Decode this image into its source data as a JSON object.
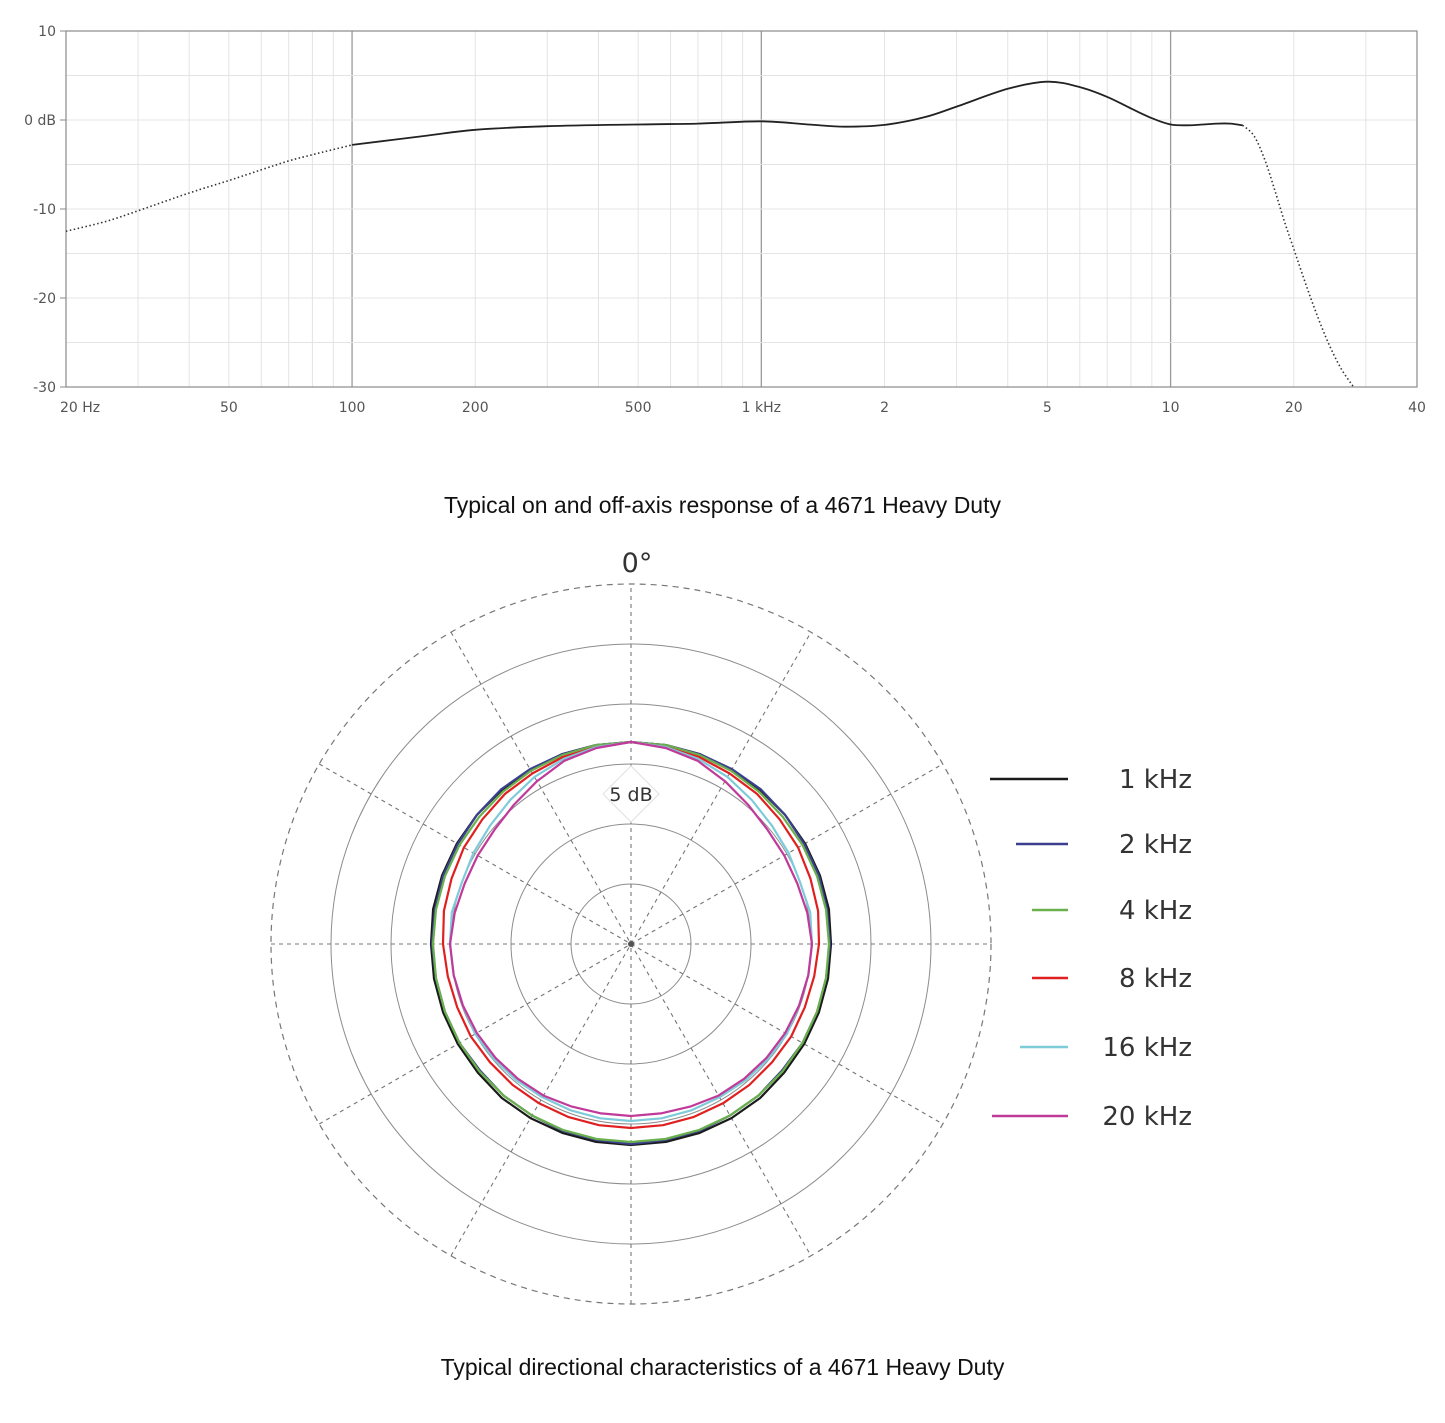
{
  "chart_data": [
    {
      "type": "line",
      "xscale": "log",
      "xlim": [
        20,
        40000
      ],
      "ylim": [
        -30,
        10
      ],
      "grid": true,
      "yticks": [
        {
          "value": 10,
          "label": "10"
        },
        {
          "value": 0,
          "label": "0 dB"
        },
        {
          "value": -10,
          "label": "-10"
        },
        {
          "value": -20,
          "label": "-20"
        },
        {
          "value": -30,
          "label": "-30"
        }
      ],
      "xticks": [
        {
          "value": 20,
          "label": "20 Hz"
        },
        {
          "value": 50,
          "label": "50"
        },
        {
          "value": 100,
          "label": "100"
        },
        {
          "value": 200,
          "label": "200"
        },
        {
          "value": 500,
          "label": "500"
        },
        {
          "value": 1000,
          "label": "1 kHz"
        },
        {
          "value": 2000,
          "label": "2"
        },
        {
          "value": 5000,
          "label": "5"
        },
        {
          "value": 10000,
          "label": "10"
        },
        {
          "value": 20000,
          "label": "20"
        },
        {
          "value": 40000,
          "label": "40"
        }
      ],
      "series": [
        {
          "style": "dotted",
          "color": "#333333",
          "x": [
            20,
            25,
            30,
            40,
            50,
            60,
            70,
            80,
            100
          ],
          "y": [
            -12.5,
            -11.4,
            -10.2,
            -8.2,
            -6.8,
            -5.6,
            -4.6,
            -3.9,
            -2.8
          ]
        },
        {
          "style": "solid",
          "color": "#222222",
          "x": [
            100,
            150,
            200,
            300,
            500,
            700,
            1000,
            1300,
            1600,
            2000,
            2500,
            3000,
            4000,
            5000,
            6000,
            7000,
            8000,
            9000,
            10000,
            11000,
            12000,
            13000,
            14000,
            15000
          ],
          "y": [
            -2.8,
            -1.8,
            -1.1,
            -0.7,
            -0.5,
            -0.4,
            -0.15,
            -0.5,
            -0.75,
            -0.55,
            0.3,
            1.5,
            3.5,
            4.3,
            3.7,
            2.6,
            1.3,
            0.2,
            -0.5,
            -0.6,
            -0.5,
            -0.4,
            -0.4,
            -0.6
          ]
        },
        {
          "style": "dotted",
          "color": "#333333",
          "x": [
            15000,
            16000,
            17000,
            18000,
            19000,
            20000,
            22000,
            24000,
            26000,
            28000
          ],
          "y": [
            -0.6,
            -1.8,
            -4.5,
            -8.0,
            -11.5,
            -14.5,
            -20.0,
            -24.5,
            -27.8,
            -30
          ]
        }
      ]
    },
    {
      "type": "polar",
      "angle_zero_label": "0°",
      "ring_label": "5 dB",
      "series": [
        {
          "name": "1 kHz",
          "color": "#1a1a1a",
          "r": [
            202,
            202,
            202,
            201,
            201,
            201,
            201,
            201,
            201,
            200,
            200,
            200,
            200,
            200,
            201,
            201,
            201,
            201,
            201
          ]
        },
        {
          "name": "2 kHz",
          "color": "#3b3f8f",
          "r": [
            202,
            202,
            202,
            202,
            202,
            201,
            200,
            200,
            199,
            199,
            198,
            198,
            198,
            197,
            198,
            198,
            199,
            199,
            200
          ]
        },
        {
          "name": "4 kHz",
          "color": "#6ab04c",
          "r": [
            202,
            202,
            201,
            200,
            199,
            198,
            198,
            198,
            198,
            198,
            198,
            198,
            198,
            198,
            198,
            198,
            198,
            198,
            198
          ]
        },
        {
          "name": "8 kHz",
          "color": "#e02020",
          "r": [
            202,
            200,
            199,
            197,
            196,
            194,
            193,
            191,
            190,
            188,
            186,
            185,
            185,
            184,
            184,
            184,
            184,
            184,
            184
          ]
        },
        {
          "name": "16 kHz",
          "color": "#7ecbd9",
          "r": [
            202,
            200,
            197,
            193,
            188,
            184,
            182,
            180,
            182,
            181,
            180,
            179,
            180,
            179,
            178,
            177,
            177,
            177,
            177
          ]
        },
        {
          "name": "20 kHz",
          "color": "#c03a9a",
          "r": [
            202,
            199,
            195,
            188,
            182,
            178,
            177,
            177,
            179,
            181,
            180,
            179,
            178,
            177,
            176,
            175,
            173,
            172,
            172
          ]
        }
      ]
    }
  ],
  "captions": {
    "response": "Typical on and off-axis response of a 4671 Heavy Duty",
    "directional": "Typical directional characteristics of a 4671 Heavy Duty"
  }
}
